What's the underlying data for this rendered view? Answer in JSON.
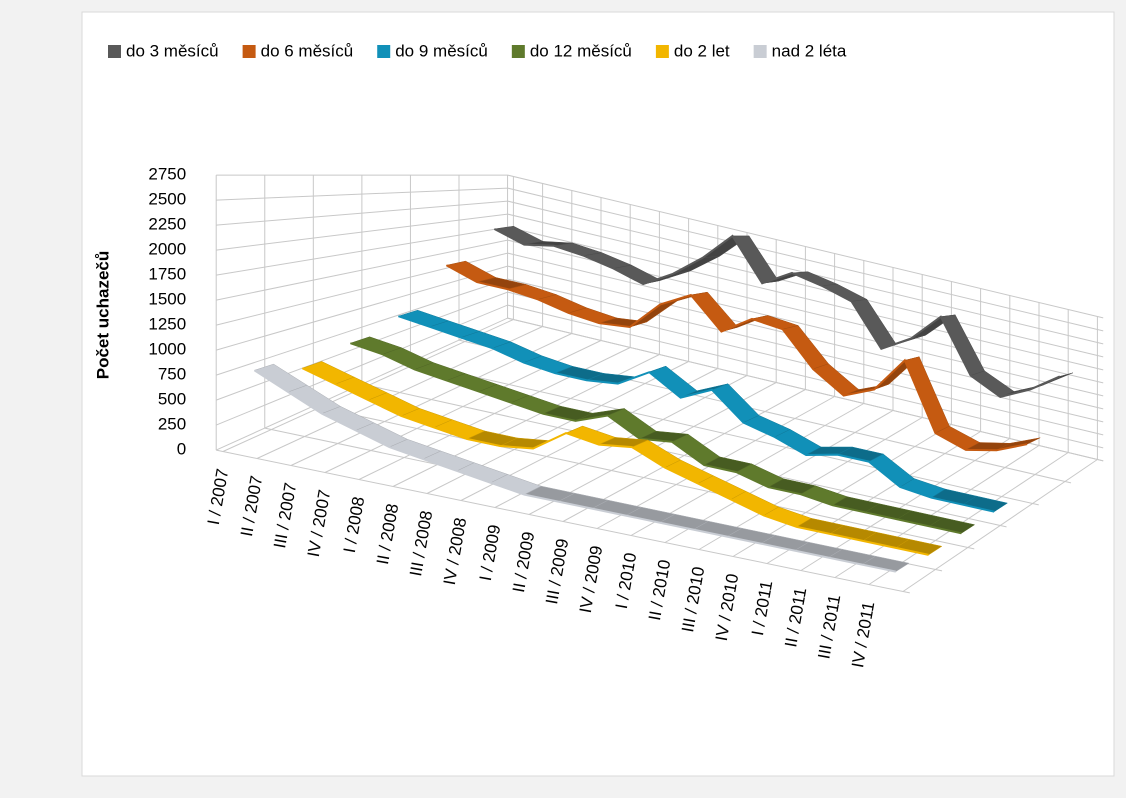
{
  "chart_data": {
    "type": "line",
    "y_label": "Počet uchazečů",
    "categories": [
      "I / 2007",
      "II / 2007",
      "III / 2007",
      "IV / 2007",
      "I / 2008",
      "II / 2008",
      "III / 2008",
      "IV / 2008",
      "I / 2009",
      "II / 2009",
      "III / 2009",
      "IV / 2009",
      "I / 2010",
      "II / 2010",
      "III / 2010",
      "IV / 2010",
      "I / 2011",
      "II / 2011",
      "III / 2011",
      "IV / 2011"
    ],
    "series": [
      {
        "name": "do 3 měsíců",
        "color": "#595959",
        "values": [
          1900,
          1750,
          1850,
          1800,
          1700,
          1550,
          1850,
          2250,
          2750,
          2050,
          2350,
          2250,
          2100,
          1400,
          1700,
          2200,
          1300,
          1050,
          1300,
          1650
        ]
      },
      {
        "name": "do 6 měsíců",
        "color": "#c55a11",
        "values": [
          1450,
          1300,
          1300,
          1250,
          1150,
          1100,
          1150,
          1600,
          1850,
          1400,
          1700,
          1650,
          1150,
          850,
          1050,
          1600,
          600,
          450,
          550,
          750
        ]
      },
      {
        "name": "do 9 měsíců",
        "color": "#1190b8",
        "values": [
          900,
          850,
          800,
          750,
          650,
          600,
          600,
          650,
          900,
          650,
          850,
          500,
          400,
          250,
          350,
          350,
          100,
          50,
          50,
          50
        ]
      },
      {
        "name": "do 12 měsíců",
        "color": "#5f7a2c",
        "values": [
          750,
          700,
          600,
          550,
          500,
          450,
          400,
          400,
          550,
          350,
          400,
          200,
          200,
          100,
          100,
          50,
          50,
          50,
          50,
          50
        ]
      },
      {
        "name": "do 2 let",
        "color": "#f2b600",
        "values": [
          650,
          550,
          450,
          350,
          300,
          250,
          250,
          300,
          550,
          500,
          550,
          400,
          300,
          200,
          100,
          50,
          50,
          50,
          50,
          50
        ]
      },
      {
        "name": "nad 2 léta",
        "color": "#c9cdd4",
        "values": [
          800,
          650,
          500,
          400,
          300,
          250,
          200,
          150,
          100,
          100,
          100,
          100,
          100,
          100,
          100,
          100,
          100,
          100,
          100,
          100
        ]
      }
    ],
    "ylim": [
      0,
      2750
    ],
    "yticks": [
      0,
      250,
      500,
      750,
      1000,
      1250,
      1500,
      1750,
      2000,
      2250,
      2500,
      2750
    ],
    "grid": true,
    "legend": "top"
  }
}
